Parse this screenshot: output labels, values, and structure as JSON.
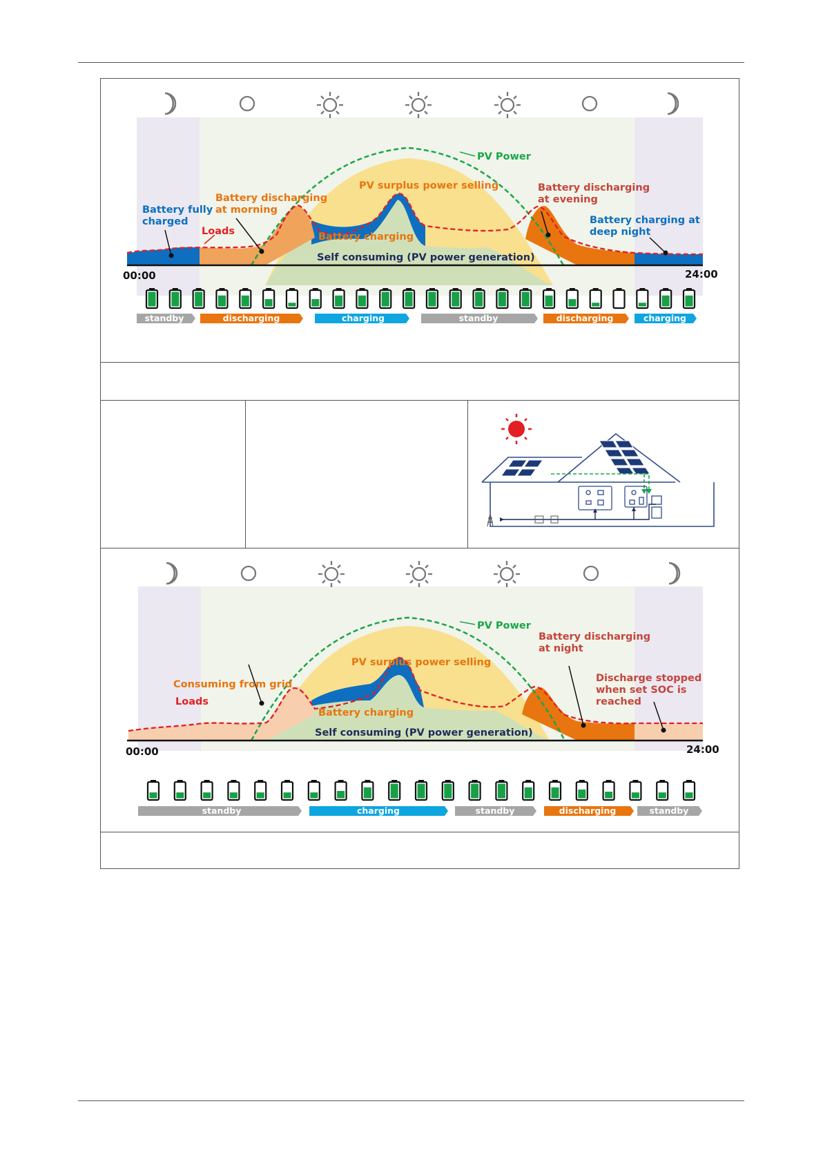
{
  "top_diagram": {
    "labels": {
      "pv_power": "PV Power",
      "pv_surplus": "PV surplus power selling",
      "battery_fully_charged_1": "Battery fully",
      "battery_fully_charged_2": "charged",
      "battery_discharging_morning_1": "Battery discharging",
      "battery_discharging_morning_2": "at morning",
      "loads": "Loads",
      "battery_charging": "Battery charging",
      "self_consuming": "Self consuming (PV power generation)",
      "battery_discharging_evening_1": "Battery discharging",
      "battery_discharging_evening_2": "at evening",
      "battery_charging_night_1": "Battery charging at",
      "battery_charging_night_2": "deep night",
      "time_start": "00:00",
      "time_end": "24:00"
    },
    "status_bars": [
      "standby",
      "discharging",
      "charging",
      "standby",
      "discharging",
      "charging"
    ],
    "battery_levels": [
      1,
      1,
      1,
      0.75,
      0.75,
      0.5,
      0.25,
      0.5,
      0.75,
      0.75,
      1,
      1,
      1,
      1,
      1,
      1,
      1,
      0.75,
      0.5,
      0.25,
      0,
      0.25,
      0.75,
      0.75
    ]
  },
  "bottom_diagram": {
    "labels": {
      "pv_power": "PV Power",
      "pv_surplus": "PV surplus power selling",
      "consuming_from_grid": "Consuming from grid",
      "loads": "Loads",
      "battery_charging": "Battery charging",
      "self_consuming": "Self consuming (PV power generation)",
      "battery_discharging_night_1": "Battery discharging",
      "battery_discharging_night_2": "at night",
      "discharge_stopped_1": "Discharge stopped",
      "discharge_stopped_2": "when set SOC is",
      "discharge_stopped_3": "reached",
      "time_start": "00:00",
      "time_end": "24:00"
    },
    "status_bars": [
      "standby",
      "charging",
      "standby",
      "discharging",
      "standby"
    ],
    "battery_levels": [
      0.4,
      0.4,
      0.4,
      0.4,
      0.4,
      0.4,
      0.4,
      0.5,
      0.75,
      1,
      1,
      1,
      1,
      1,
      0.75,
      0.75,
      0.6,
      0.45,
      0.4,
      0.4,
      0.4
    ]
  },
  "colors": {
    "blue": "#0e6fc0",
    "orange": "#e8750f",
    "light_orange": "#f0a35a",
    "peach": "#f7cfae",
    "yellow": "#f8e08e",
    "green_fill": "#cfe0b8",
    "pv_green": "#18a64a",
    "load_red": "#e31e24",
    "night_bg": "#ebe8f1",
    "day_bg": "#f1f4ea",
    "cyan": "#0ea5e0",
    "grey": "#a6a6a6"
  }
}
